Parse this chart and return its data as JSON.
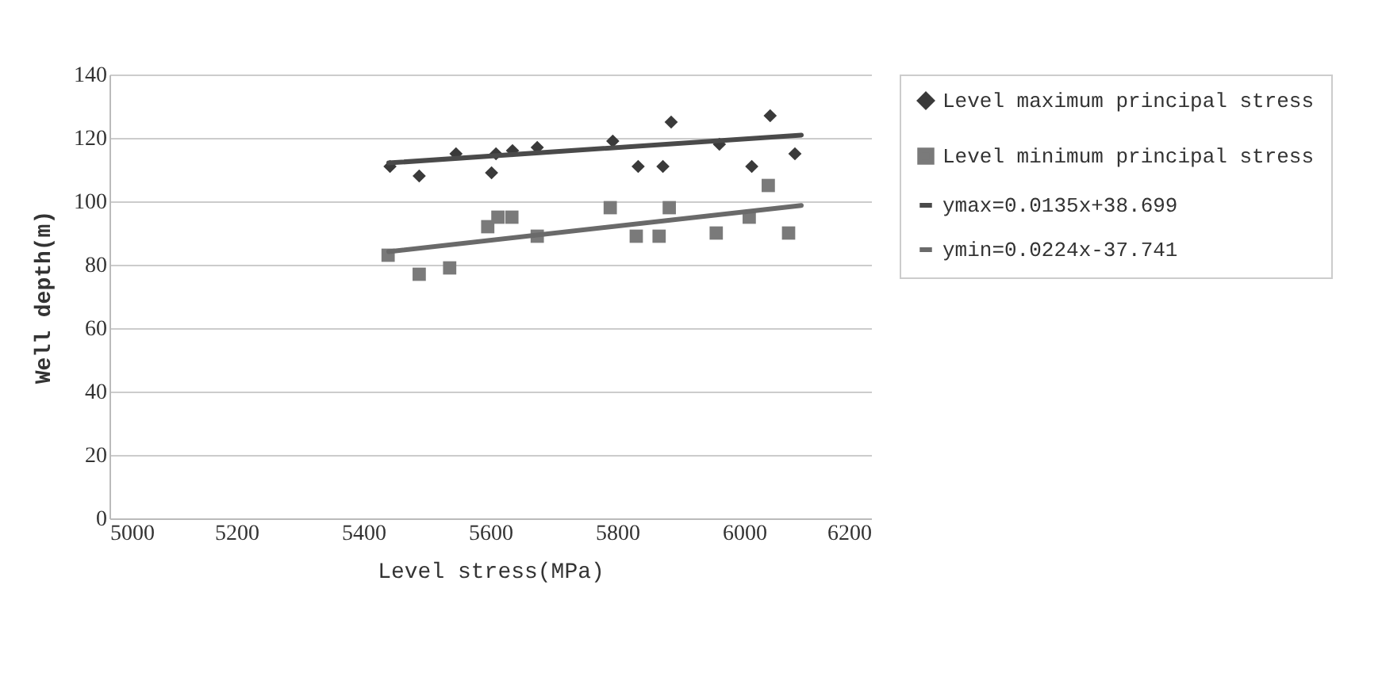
{
  "chart_data": {
    "type": "scatter",
    "xlabel": "Level stress(MPa)",
    "ylabel": "Well depth(m)",
    "xlim": [
      5000,
      6200
    ],
    "xticks": [
      5000,
      5200,
      5400,
      5600,
      5800,
      6000,
      6200
    ],
    "ylim": [
      0,
      140
    ],
    "yticks": [
      0,
      20,
      40,
      60,
      80,
      100,
      120,
      140
    ],
    "grid": "y",
    "legend": "right",
    "series": [
      {
        "name": "Level maximum principal stress",
        "marker": "diamond",
        "color": "#3a3a3a",
        "x": [
          5442,
          5488,
          5546,
          5602,
          5609,
          5635,
          5674,
          5793,
          5833,
          5872,
          5885,
          5961,
          6012,
          6041,
          6080
        ],
        "values": [
          111,
          108,
          115,
          109,
          115,
          116,
          117,
          119,
          111,
          111,
          125,
          118,
          111,
          127,
          115
        ]
      },
      {
        "name": "Level minimum principal stress",
        "marker": "square",
        "color": "#7a7a7a",
        "x": [
          5439,
          5488,
          5536,
          5596,
          5612,
          5634,
          5674,
          5789,
          5830,
          5866,
          5882,
          5956,
          6008,
          6038,
          6070
        ],
        "values": [
          83,
          77,
          79,
          92,
          95,
          95,
          89,
          98,
          89,
          89,
          98,
          90,
          95,
          105,
          90
        ]
      },
      {
        "name": "ymax=0.0135x+38.699",
        "type": "line",
        "color": "#4a4a4a",
        "x": [
          5440,
          6090
        ],
        "values": [
          112.1,
          120.9
        ]
      },
      {
        "name": "ymin=0.0224x-37.741",
        "type": "line",
        "color": "#6a6a6a",
        "x": [
          5440,
          6090
        ],
        "values": [
          84.1,
          98.7
        ]
      }
    ]
  }
}
